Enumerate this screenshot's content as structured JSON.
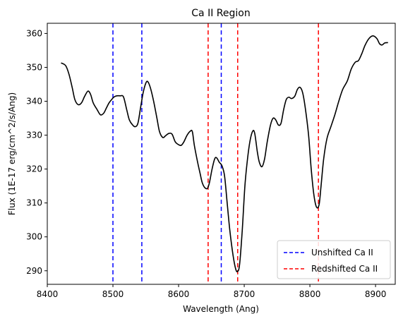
{
  "chart_data": {
    "type": "line",
    "title": "Ca II Region",
    "xlabel": "Wavelength (Ang)",
    "ylabel": "Flux (1E-17 erg/cm^2/s/Ang)",
    "xlim": [
      8400,
      8930
    ],
    "ylim": [
      286,
      363
    ],
    "xticks": [
      8400,
      8500,
      8600,
      8700,
      8800,
      8900
    ],
    "yticks": [
      290,
      300,
      310,
      320,
      330,
      340,
      350,
      360
    ],
    "grid": false,
    "legend_position": "lower-right",
    "series": [
      {
        "style": "solid",
        "color": "#000000",
        "points": [
          [
            8421,
            351.3
          ],
          [
            8428,
            350.5
          ],
          [
            8433,
            348.0
          ],
          [
            8438,
            344.0
          ],
          [
            8442,
            340.5
          ],
          [
            8447,
            339.0
          ],
          [
            8452,
            339.5
          ],
          [
            8457,
            341.5
          ],
          [
            8462,
            343.0
          ],
          [
            8466,
            342.0
          ],
          [
            8470,
            339.5
          ],
          [
            8476,
            337.5
          ],
          [
            8481,
            336.0
          ],
          [
            8486,
            336.5
          ],
          [
            8490,
            338.0
          ],
          [
            8494,
            339.5
          ],
          [
            8498,
            340.5
          ],
          [
            8502,
            341.3
          ],
          [
            8506,
            341.6
          ],
          [
            8511,
            341.6
          ],
          [
            8516,
            341.3
          ],
          [
            8521,
            337.5
          ],
          [
            8525,
            334.5
          ],
          [
            8530,
            333.0
          ],
          [
            8534,
            332.5
          ],
          [
            8538,
            333.5
          ],
          [
            8542,
            338.0
          ],
          [
            8546,
            342.5
          ],
          [
            8550,
            345.3
          ],
          [
            8553,
            345.8
          ],
          [
            8557,
            344.0
          ],
          [
            8562,
            340.0
          ],
          [
            8567,
            335.0
          ],
          [
            8571,
            331.0
          ],
          [
            8576,
            329.3
          ],
          [
            8580,
            329.8
          ],
          [
            8585,
            330.5
          ],
          [
            8590,
            330.3
          ],
          [
            8595,
            328.0
          ],
          [
            8600,
            327.2
          ],
          [
            8604,
            327.0
          ],
          [
            8608,
            328.0
          ],
          [
            8613,
            330.0
          ],
          [
            8618,
            331.2
          ],
          [
            8621,
            331.0
          ],
          [
            8624,
            327.0
          ],
          [
            8629,
            322.0
          ],
          [
            8633,
            318.5
          ],
          [
            8636,
            316.0
          ],
          [
            8640,
            314.5
          ],
          [
            8644,
            314.3
          ],
          [
            8647,
            316.0
          ],
          [
            8651,
            320.0
          ],
          [
            8655,
            323.0
          ],
          [
            8658,
            323.3
          ],
          [
            8662,
            322.0
          ],
          [
            8666,
            321.0
          ],
          [
            8670,
            318.0
          ],
          [
            8674,
            310.0
          ],
          [
            8678,
            302.0
          ],
          [
            8683,
            294.5
          ],
          [
            8687,
            290.5
          ],
          [
            8690,
            289.8
          ],
          [
            8693,
            292.0
          ],
          [
            8697,
            302.0
          ],
          [
            8701,
            315.0
          ],
          [
            8705,
            323.0
          ],
          [
            8709,
            328.5
          ],
          [
            8713,
            331.2
          ],
          [
            8716,
            330.5
          ],
          [
            8720,
            325.0
          ],
          [
            8723,
            322.0
          ],
          [
            8727,
            320.7
          ],
          [
            8731,
            323.0
          ],
          [
            8735,
            328.0
          ],
          [
            8740,
            333.0
          ],
          [
            8744,
            335.0
          ],
          [
            8748,
            334.5
          ],
          [
            8752,
            333.0
          ],
          [
            8756,
            333.5
          ],
          [
            8760,
            337.5
          ],
          [
            8764,
            340.5
          ],
          [
            8768,
            341.2
          ],
          [
            8772,
            340.8
          ],
          [
            8777,
            341.5
          ],
          [
            8781,
            343.5
          ],
          [
            8785,
            344.1
          ],
          [
            8789,
            342.5
          ],
          [
            8793,
            338.0
          ],
          [
            8798,
            330.0
          ],
          [
            8802,
            320.0
          ],
          [
            8806,
            312.5
          ],
          [
            8810,
            308.8
          ],
          [
            8814,
            309.5
          ],
          [
            8817,
            315.0
          ],
          [
            8821,
            323.0
          ],
          [
            8826,
            329.0
          ],
          [
            8832,
            332.5
          ],
          [
            8838,
            336.0
          ],
          [
            8844,
            340.0
          ],
          [
            8850,
            343.5
          ],
          [
            8857,
            346.0
          ],
          [
            8863,
            349.5
          ],
          [
            8869,
            351.5
          ],
          [
            8874,
            352.0
          ],
          [
            8879,
            354.0
          ],
          [
            8884,
            356.5
          ],
          [
            8890,
            358.5
          ],
          [
            8896,
            359.3
          ],
          [
            8902,
            358.5
          ],
          [
            8906,
            357.0
          ],
          [
            8910,
            356.6
          ],
          [
            8914,
            357.2
          ],
          [
            8919,
            357.3
          ]
        ]
      }
    ],
    "vlines": [
      {
        "legend_ref": "unshifted",
        "x": 8500,
        "color": "#0000ff"
      },
      {
        "legend_ref": "unshifted",
        "x": 8544,
        "color": "#0000ff"
      },
      {
        "legend_ref": "unshifted",
        "x": 8665,
        "color": "#0000ff"
      },
      {
        "legend_ref": "redshifted",
        "x": 8645,
        "color": "#ff0000"
      },
      {
        "legend_ref": "redshifted",
        "x": 8690,
        "color": "#ff0000"
      },
      {
        "legend_ref": "redshifted",
        "x": 8813,
        "color": "#ff0000"
      }
    ],
    "legend": {
      "unshifted": {
        "label": "Unshifted Ca II",
        "color": "#0000ff",
        "style": "dashed"
      },
      "redshifted": {
        "label": "Redshifted Ca II",
        "color": "#ff0000",
        "style": "dashed"
      }
    }
  }
}
